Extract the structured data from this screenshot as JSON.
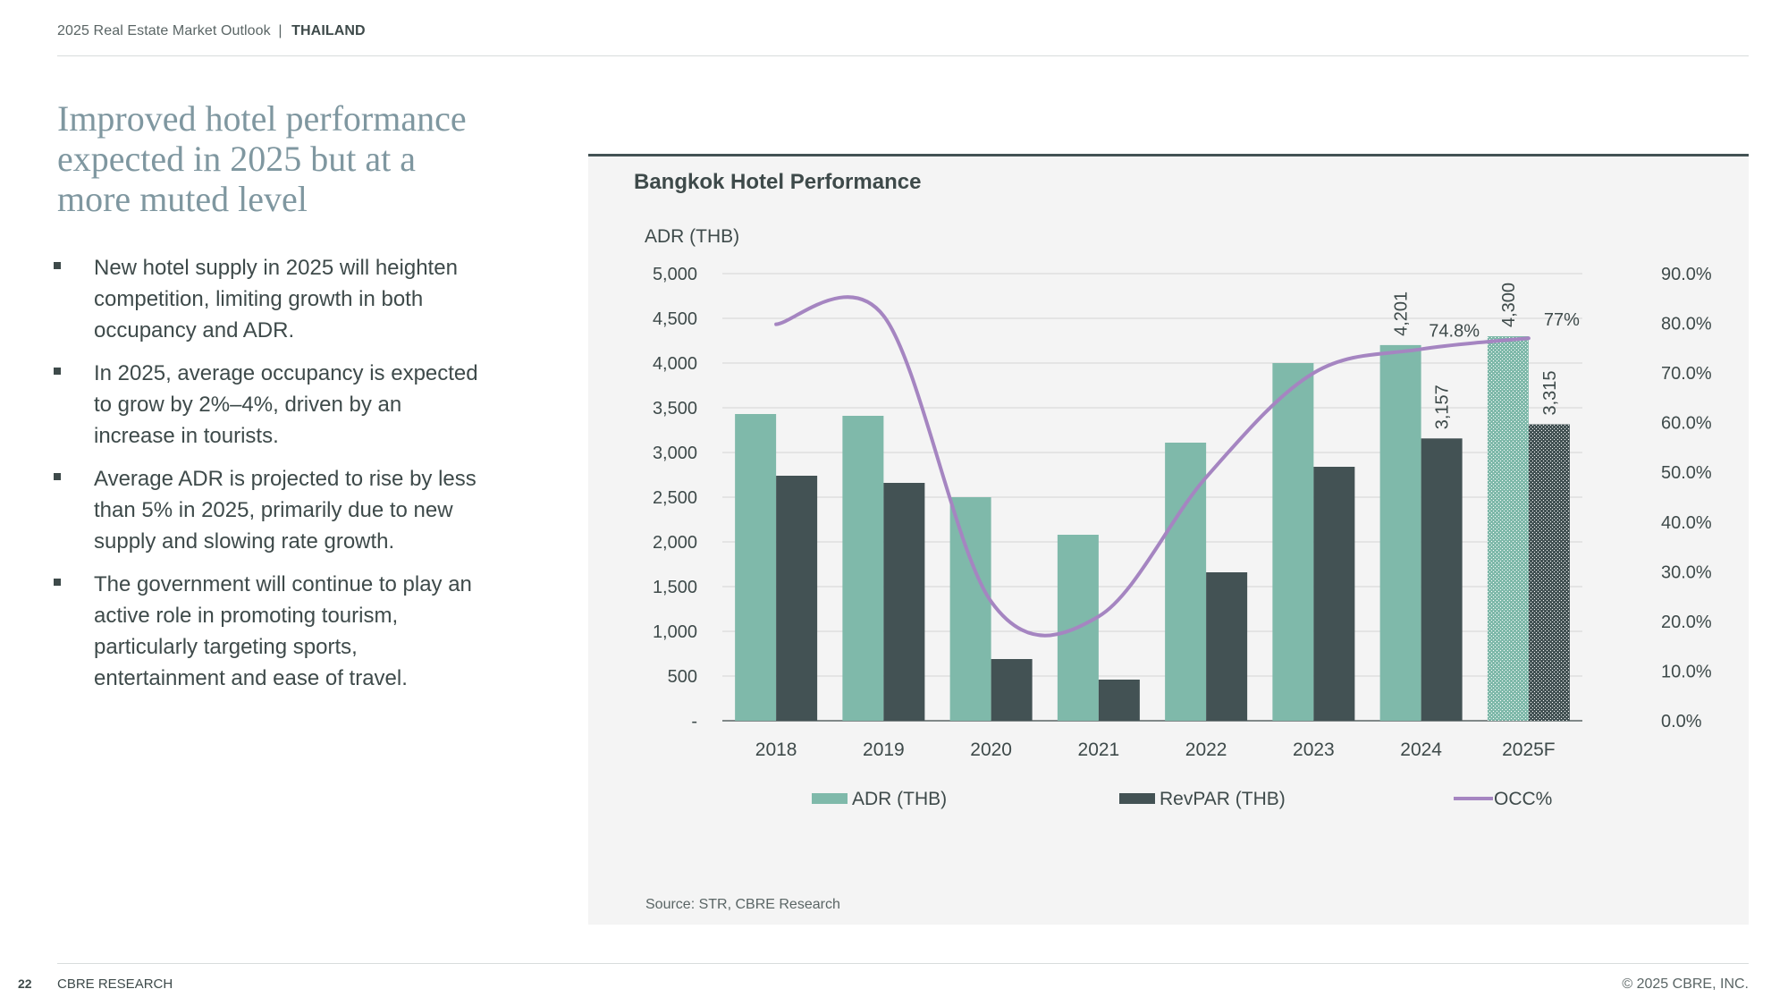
{
  "header": {
    "report": "2025 Real Estate Market Outlook",
    "separator": "|",
    "country": "THAILAND"
  },
  "headline": "Improved hotel performance expected in 2025 but at a more muted level",
  "bullets": [
    "New hotel supply in 2025 will heighten competition, limiting growth in both occupancy and ADR.",
    "In 2025, average occupancy is expected to grow by 2%–4%, driven by an increase in tourists.",
    "Average ADR is projected to rise by less than 5% in 2025, primarily due to new supply and slowing rate growth.",
    "The government will continue to play an active role in promoting tourism, particularly targeting sports, entertainment and ease of travel."
  ],
  "source": "Source: STR, CBRE Research",
  "footer": {
    "page": "22",
    "name": "CBRE RESEARCH",
    "copyright": "© 2025 CBRE, INC."
  },
  "colors": {
    "adr": "#7fb9aa",
    "revpar": "#435254",
    "occ": "#a585c1",
    "panel": "#f4f4f4",
    "headline": "#7f97a0"
  },
  "chart_data": {
    "type": "bar",
    "title": "Bangkok Hotel Performance",
    "ylabel": "ADR (THB)",
    "categories": [
      "2018",
      "2019",
      "2020",
      "2021",
      "2022",
      "2023",
      "2024",
      "2025F"
    ],
    "series": [
      {
        "name": "ADR (THB)",
        "type": "bar",
        "axis": "left",
        "values": [
          3430,
          3410,
          2500,
          2080,
          3110,
          4000,
          4201,
          4300
        ],
        "forecast_index": 7,
        "data_labels": {
          "6": "4,201",
          "7": "4,300"
        }
      },
      {
        "name": "RevPAR (THB)",
        "type": "bar",
        "axis": "left",
        "values": [
          2740,
          2660,
          690,
          460,
          1660,
          2840,
          3157,
          3315
        ],
        "forecast_index": 7,
        "data_labels": {
          "6": "3,157",
          "7": "3,315"
        }
      },
      {
        "name": "OCC%",
        "type": "line",
        "axis": "right",
        "values": [
          79.8,
          81.5,
          24.0,
          21.0,
          49.0,
          70.0,
          74.8,
          77.0
        ],
        "data_labels": {
          "6": "74.8%",
          "7": "77%"
        }
      }
    ],
    "y_left": {
      "min": 0,
      "max": 5000,
      "step": 500,
      "ticks": [
        "-",
        "500",
        "1,000",
        "1,500",
        "2,000",
        "2,500",
        "3,000",
        "3,500",
        "4,000",
        "4,500",
        "5,000"
      ]
    },
    "y_right": {
      "min": 0,
      "max": 90,
      "step": 10,
      "ticks": [
        "0.0%",
        "10.0%",
        "20.0%",
        "30.0%",
        "40.0%",
        "50.0%",
        "60.0%",
        "70.0%",
        "80.0%",
        "90.0%"
      ]
    },
    "grid": true,
    "legend_position": "bottom"
  }
}
